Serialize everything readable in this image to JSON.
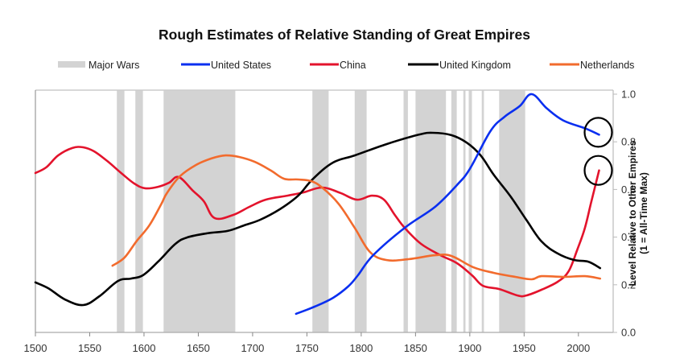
{
  "chart_data": {
    "type": "line",
    "title": "Rough Estimates of Relative Standing of Great Empires",
    "xlabel": "",
    "ylabel": "Level Relative to Other Empires",
    "ylabel_sub": "(1 = All-Time Max)",
    "xlim": [
      1500,
      2032
    ],
    "ylim": [
      0.0,
      1.0
    ],
    "x_ticks": [
      1500,
      1550,
      1600,
      1650,
      1700,
      1750,
      1800,
      1850,
      1900,
      1950,
      2000
    ],
    "x_tick_labels": [
      "1500",
      "1550",
      "1600",
      "1650",
      "1700",
      "1750",
      "1800",
      "1850",
      "1900",
      "1950",
      "2000"
    ],
    "y_ticks": [
      0.0,
      0.2,
      0.4,
      0.6,
      0.8,
      1.0
    ],
    "y_tick_labels": [
      "0.0",
      "0.2",
      "0.4",
      "0.6",
      "0.8",
      "1.0"
    ],
    "y_axis_side": "right",
    "grid": false,
    "legend_placement": "top",
    "legend": [
      {
        "key": "wars",
        "label": "Major Wars",
        "kind": "band"
      },
      {
        "key": "us",
        "label": "United States",
        "kind": "line"
      },
      {
        "key": "china",
        "label": "China",
        "kind": "line"
      },
      {
        "key": "uk",
        "label": "United Kingdom",
        "kind": "line"
      },
      {
        "key": "nl",
        "label": "Netherlands",
        "kind": "line"
      }
    ],
    "colors": {
      "wars": "#d3d3d3",
      "us": "#0a2ff0",
      "china": "#e3132c",
      "uk": "#000000",
      "nl": "#f26b2d",
      "annotation": "#000000",
      "axis": "#bbbbbb"
    },
    "major_wars": [
      [
        1575,
        1582
      ],
      [
        1592,
        1599
      ],
      [
        1618,
        1684
      ],
      [
        1755,
        1770
      ],
      [
        1794,
        1805
      ],
      [
        1839,
        1843
      ],
      [
        1850,
        1878
      ],
      [
        1883,
        1888
      ],
      [
        1894,
        1896
      ],
      [
        1899,
        1902
      ],
      [
        1911,
        1913
      ],
      [
        1927,
        1951
      ]
    ],
    "series": [
      {
        "key": "china",
        "name": "China",
        "x": [
          1500,
          1510,
          1521,
          1534,
          1544,
          1554,
          1566,
          1579,
          1591,
          1601,
          1613,
          1623,
          1632,
          1645,
          1655,
          1665,
          1682,
          1697,
          1712,
          1732,
          1747,
          1764,
          1781,
          1796,
          1810,
          1821,
          1831,
          1840,
          1855,
          1873,
          1888,
          1902,
          1912,
          1927,
          1944,
          1952,
          1966,
          1981,
          1991,
          1999,
          2006,
          2012,
          2019
        ],
        "values": [
          0.669,
          0.693,
          0.743,
          0.774,
          0.777,
          0.76,
          0.72,
          0.669,
          0.625,
          0.605,
          0.611,
          0.628,
          0.652,
          0.595,
          0.551,
          0.48,
          0.493,
          0.527,
          0.557,
          0.574,
          0.588,
          0.608,
          0.585,
          0.557,
          0.574,
          0.557,
          0.493,
          0.439,
          0.372,
          0.324,
          0.291,
          0.24,
          0.196,
          0.182,
          0.155,
          0.155,
          0.179,
          0.213,
          0.257,
          0.348,
          0.439,
          0.551,
          0.68
        ]
      },
      {
        "key": "uk",
        "name": "United Kingdom",
        "x": [
          1500,
          1512,
          1527,
          1544,
          1559,
          1576,
          1588,
          1599,
          1613,
          1629,
          1640,
          1658,
          1677,
          1692,
          1707,
          1725,
          1742,
          1755,
          1774,
          1794,
          1823,
          1853,
          1866,
          1883,
          1897,
          1910,
          1922,
          1937,
          1952,
          1966,
          1981,
          1996,
          2009,
          2020
        ],
        "values": [
          0.21,
          0.185,
          0.139,
          0.115,
          0.152,
          0.216,
          0.226,
          0.24,
          0.297,
          0.372,
          0.399,
          0.416,
          0.426,
          0.449,
          0.473,
          0.517,
          0.574,
          0.642,
          0.713,
          0.743,
          0.79,
          0.83,
          0.838,
          0.828,
          0.797,
          0.743,
          0.662,
          0.574,
          0.473,
          0.382,
          0.331,
          0.304,
          0.297,
          0.27
        ]
      },
      {
        "key": "nl",
        "name": "Netherlands",
        "x": [
          1571,
          1582,
          1593,
          1605,
          1616,
          1621,
          1633,
          1648,
          1662,
          1675,
          1688,
          1702,
          1717,
          1729,
          1742,
          1754,
          1764,
          1779,
          1794,
          1808,
          1823,
          1843,
          1868,
          1883,
          1903,
          1922,
          1942,
          1957,
          1966,
          1986,
          2006,
          2020
        ],
        "values": [
          0.28,
          0.314,
          0.382,
          0.45,
          0.54,
          0.584,
          0.655,
          0.703,
          0.73,
          0.743,
          0.736,
          0.716,
          0.679,
          0.645,
          0.642,
          0.635,
          0.608,
          0.541,
          0.439,
          0.338,
          0.304,
          0.307,
          0.324,
          0.321,
          0.274,
          0.25,
          0.233,
          0.223,
          0.236,
          0.233,
          0.236,
          0.226
        ]
      },
      {
        "key": "us",
        "name": "United States",
        "x": [
          1740,
          1757,
          1774,
          1788,
          1797,
          1811,
          1840,
          1868,
          1888,
          1900,
          1919,
          1932,
          1946,
          1957,
          1971,
          1986,
          2007,
          2019
        ],
        "values": [
          0.078,
          0.108,
          0.145,
          0.193,
          0.24,
          0.324,
          0.439,
          0.527,
          0.618,
          0.686,
          0.845,
          0.905,
          0.95,
          1.0,
          0.94,
          0.89,
          0.855,
          0.83
        ]
      }
    ],
    "annotations": [
      {
        "type": "circle",
        "target": "us",
        "year": 2019,
        "value": 0.84
      },
      {
        "type": "circle",
        "target": "china",
        "year": 2019,
        "value": 0.68
      }
    ]
  }
}
